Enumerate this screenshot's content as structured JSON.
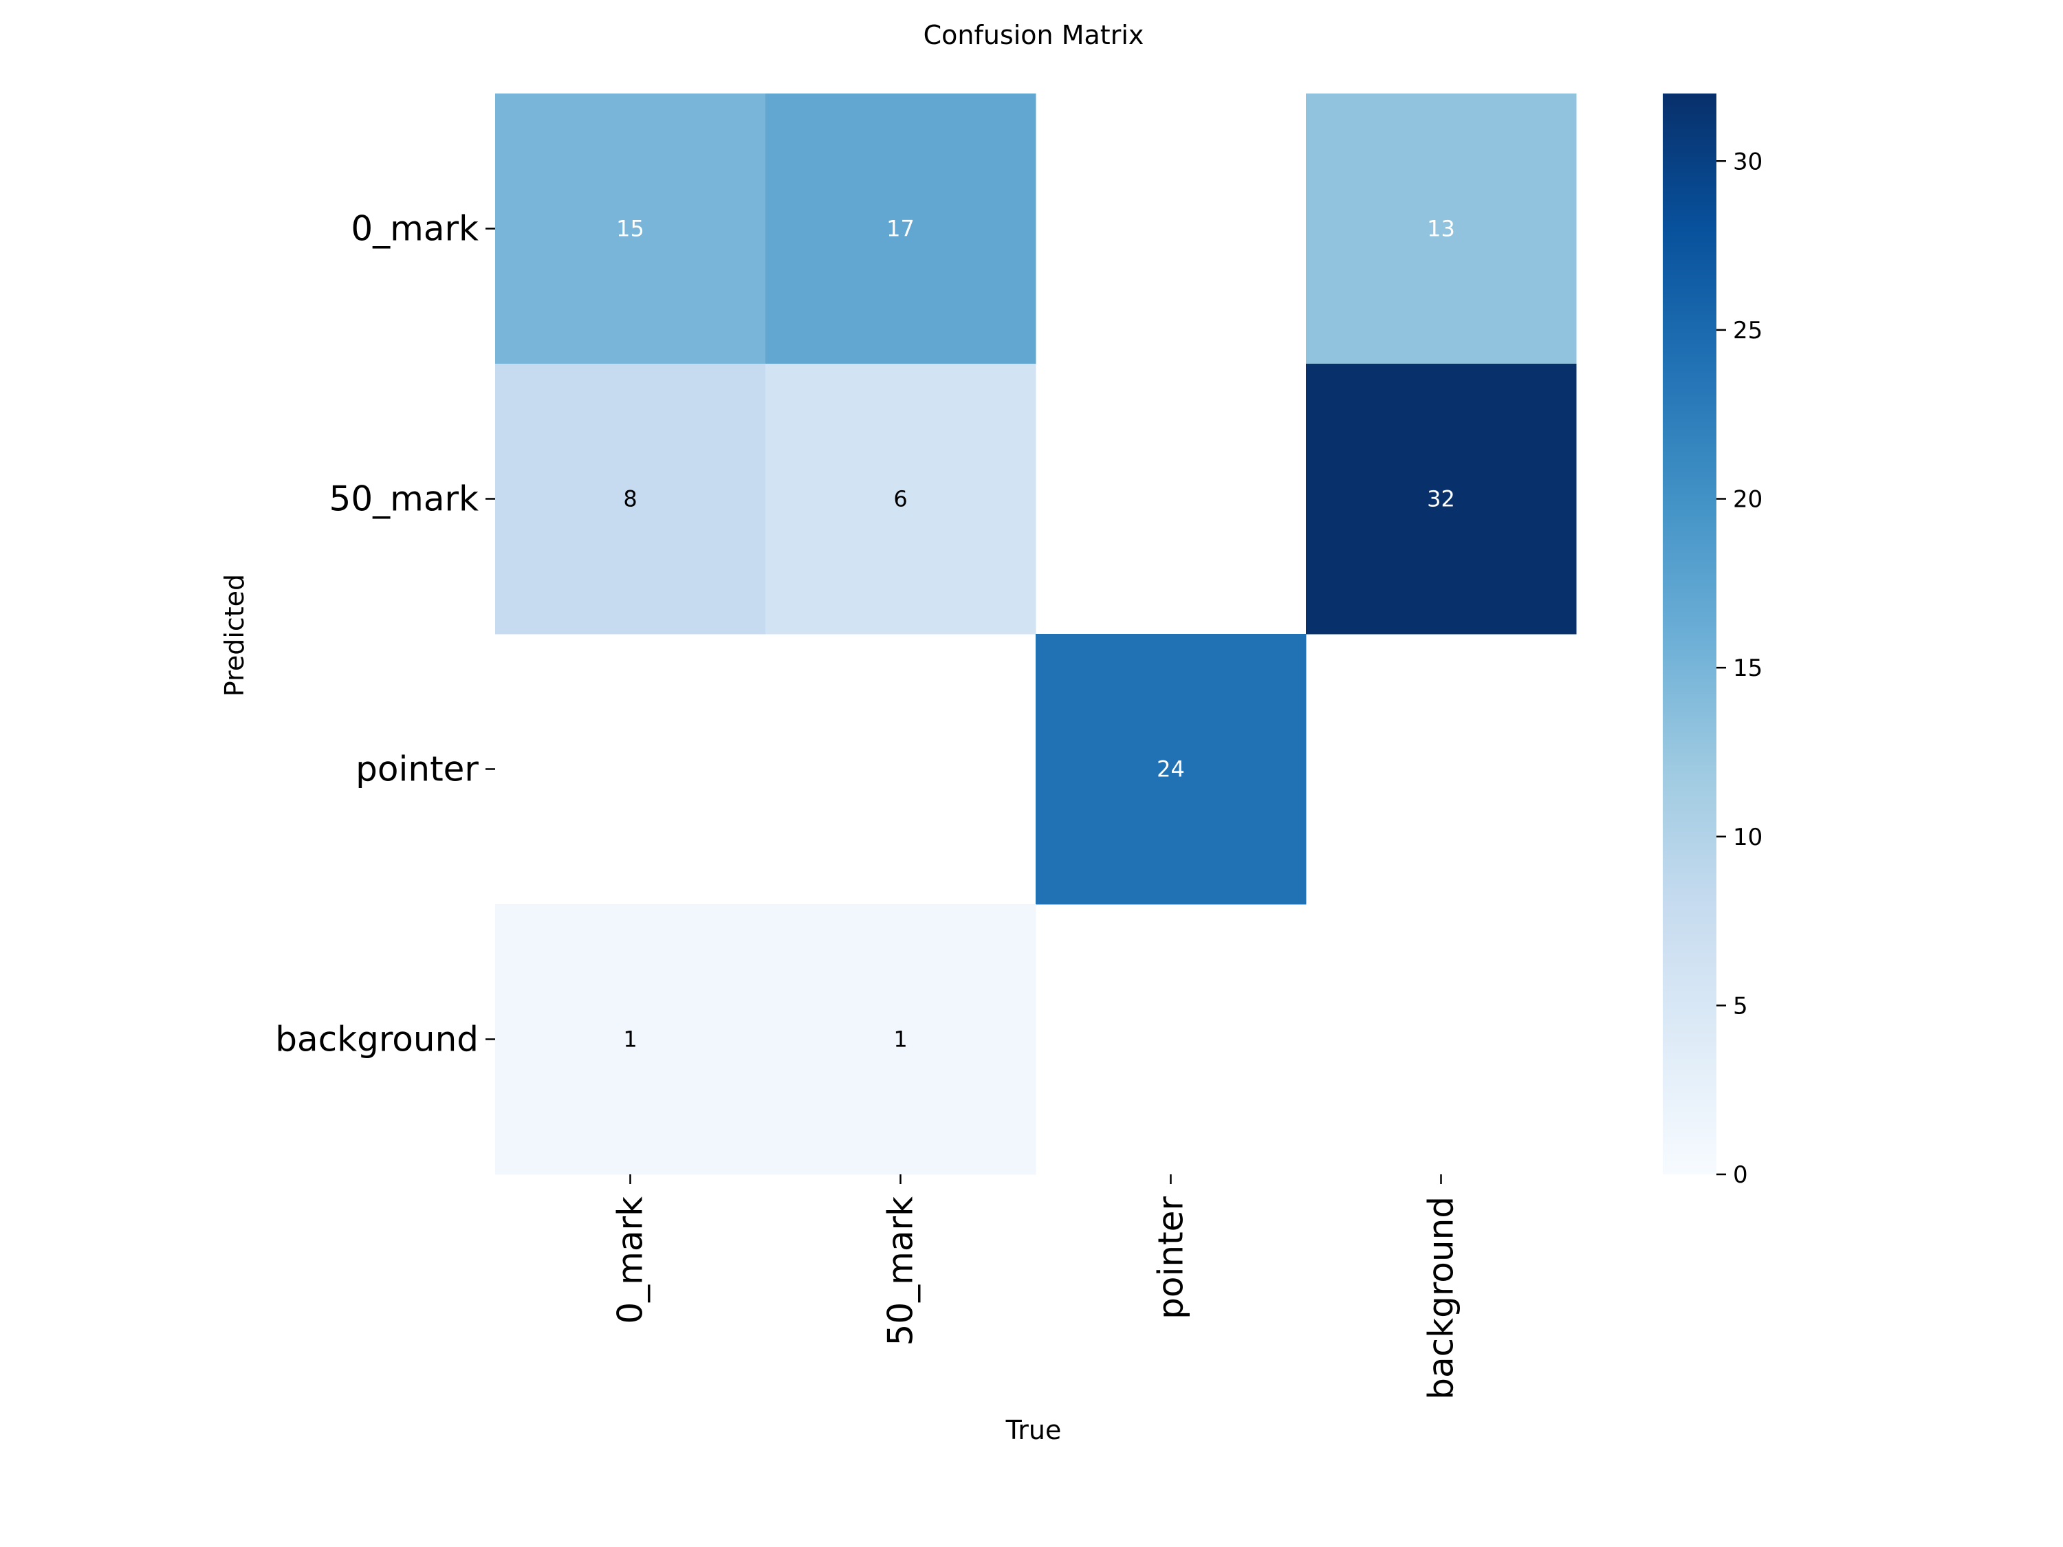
{
  "chart_data": {
    "type": "heatmap",
    "title": "Confusion Matrix",
    "xlabel": "True",
    "ylabel": "Predicted",
    "x_categories": [
      "0_mark",
      "50_mark",
      "pointer",
      "background"
    ],
    "y_categories": [
      "0_mark",
      "50_mark",
      "pointer",
      "background"
    ],
    "values": [
      [
        15,
        17,
        null,
        13
      ],
      [
        8,
        6,
        null,
        32
      ],
      [
        null,
        null,
        24,
        null
      ],
      [
        1,
        1,
        null,
        null
      ]
    ],
    "colorscale": "Blues",
    "vmin": 0,
    "vmax": 32,
    "colorbar_ticks": [
      0,
      5,
      10,
      15,
      20,
      25,
      30
    ],
    "empty_cells": "blank"
  }
}
